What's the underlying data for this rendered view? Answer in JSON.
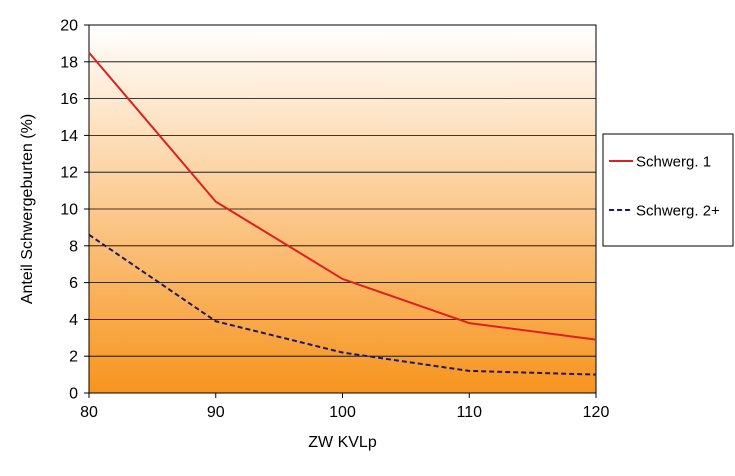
{
  "chart_data": {
    "type": "line",
    "xlabel": "ZW KVLp",
    "ylabel": "Anteil Schwergeburten (%)",
    "x": [
      80,
      90,
      100,
      110,
      120
    ],
    "xlim": [
      80,
      120
    ],
    "ylim": [
      0,
      20
    ],
    "x_ticks": [
      80,
      90,
      100,
      110,
      120
    ],
    "y_ticks": [
      0,
      2,
      4,
      6,
      8,
      10,
      12,
      14,
      16,
      18,
      20
    ],
    "grid": "horizontal",
    "legend_position": "right",
    "series": [
      {
        "name": "Schwerg. 1",
        "values": [
          18.5,
          10.4,
          6.2,
          3.8,
          2.9
        ],
        "color": "#e02020",
        "style": "solid"
      },
      {
        "name": "Schwerg. 2+",
        "values": [
          8.6,
          3.9,
          2.2,
          1.2,
          1.0
        ],
        "color": "#1a1a6e",
        "style": "dashed"
      }
    ],
    "background_gradient": {
      "top": "#ffffff",
      "bottom": "#f7941d"
    }
  }
}
